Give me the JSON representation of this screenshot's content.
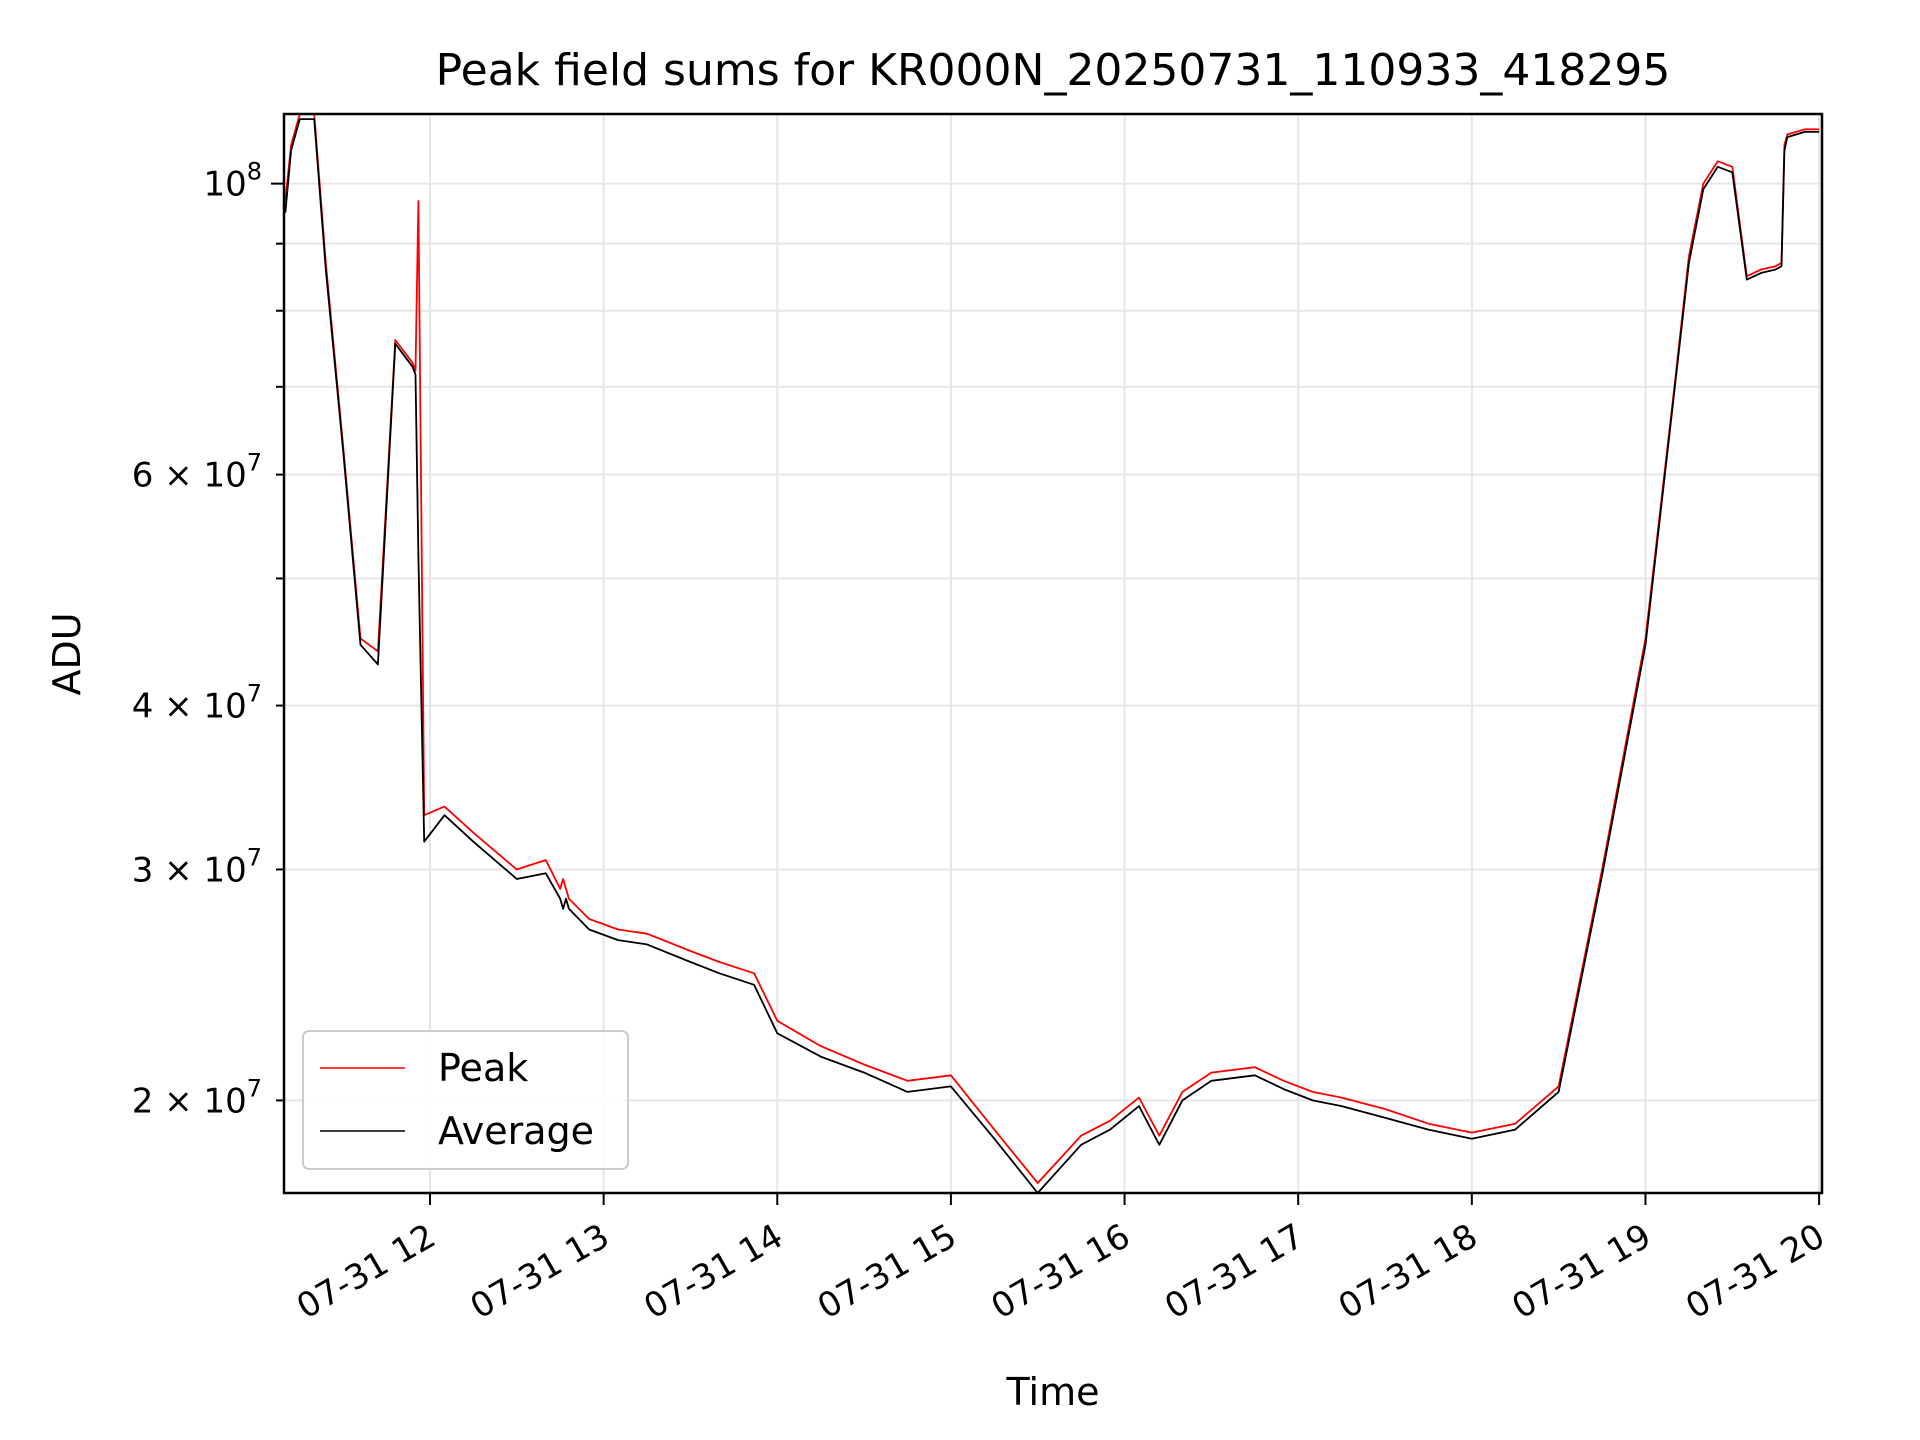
{
  "chart_data": {
    "type": "line",
    "title": "Peak field sums for KR000N_20250731_110933_418295",
    "xlabel": "Time",
    "ylabel": "ADU",
    "y_scale": "log",
    "ylim": [
      17000000,
      113000000
    ],
    "xlim": [
      "2025-07-31 11:09:33",
      "2025-07-31 20:01:00"
    ],
    "grid": true,
    "legend_position": "lower-left",
    "x_tick_labels": [
      "07-31 12",
      "07-31 13",
      "07-31 14",
      "07-31 15",
      "07-31 16",
      "07-31 17",
      "07-31 18",
      "07-31 19",
      "07-31 20"
    ],
    "x_ticks": [
      "2025-07-31 12:00",
      "2025-07-31 13:00",
      "2025-07-31 14:00",
      "2025-07-31 15:00",
      "2025-07-31 16:00",
      "2025-07-31 17:00",
      "2025-07-31 18:00",
      "2025-07-31 19:00",
      "2025-07-31 20:00"
    ],
    "y_major_ticks": [
      {
        "value": 100000000,
        "mantissa": "",
        "exponent": "8"
      }
    ],
    "y_minor_ticks": [
      {
        "value": 20000000,
        "mantissa": "2",
        "exponent": "7"
      },
      {
        "value": 30000000,
        "mantissa": "3",
        "exponent": "7"
      },
      {
        "value": 40000000,
        "mantissa": "4",
        "exponent": "7"
      },
      {
        "value": 60000000,
        "mantissa": "6",
        "exponent": "7"
      }
    ],
    "y_unlabeled_minor_ticks": [
      50000000,
      70000000,
      80000000,
      90000000
    ],
    "series": [
      {
        "name": "Peak",
        "color": "#ff0000",
        "x": [
          "2025-07-31 11:10:00",
          "2025-07-31 11:12:00",
          "2025-07-31 11:15:00",
          "2025-07-31 11:20:00",
          "2025-07-31 11:24:00",
          "2025-07-31 11:30:00",
          "2025-07-31 11:36:00",
          "2025-07-31 11:42:00",
          "2025-07-31 11:48:00",
          "2025-07-31 11:54:00",
          "2025-07-31 11:55:00",
          "2025-07-31 11:56:00",
          "2025-07-31 11:58:00",
          "2025-07-31 12:05:00",
          "2025-07-31 12:15:00",
          "2025-07-31 12:30:00",
          "2025-07-31 12:40:00",
          "2025-07-31 12:45:00",
          "2025-07-31 12:46:00",
          "2025-07-31 12:47:00",
          "2025-07-31 12:48:00",
          "2025-07-31 12:55:00",
          "2025-07-31 13:05:00",
          "2025-07-31 13:15:00",
          "2025-07-31 13:30:00",
          "2025-07-31 13:40:00",
          "2025-07-31 13:52:00",
          "2025-07-31 14:00:00",
          "2025-07-31 14:15:00",
          "2025-07-31 14:30:00",
          "2025-07-31 14:45:00",
          "2025-07-31 15:00:00",
          "2025-07-31 15:15:00",
          "2025-07-31 15:30:00",
          "2025-07-31 15:45:00",
          "2025-07-31 15:55:00",
          "2025-07-31 16:05:00",
          "2025-07-31 16:12:00",
          "2025-07-31 16:20:00",
          "2025-07-31 16:30:00",
          "2025-07-31 16:45:00",
          "2025-07-31 16:55:00",
          "2025-07-31 17:05:00",
          "2025-07-31 17:15:00",
          "2025-07-31 17:30:00",
          "2025-07-31 17:45:00",
          "2025-07-31 18:00:00",
          "2025-07-31 18:15:00",
          "2025-07-31 18:30:00",
          "2025-07-31 18:45:00",
          "2025-07-31 19:00:00",
          "2025-07-31 19:10:00",
          "2025-07-31 19:15:00",
          "2025-07-31 19:20:00",
          "2025-07-31 19:25:00",
          "2025-07-31 19:30:00",
          "2025-07-31 19:35:00",
          "2025-07-31 19:40:00",
          "2025-07-31 19:45:00",
          "2025-07-31 19:47:00",
          "2025-07-31 19:48:00",
          "2025-07-31 19:49:00",
          "2025-07-31 19:52:00",
          "2025-07-31 19:55:00",
          "2025-07-31 19:56:00",
          "2025-07-31 20:00:00"
        ],
        "values": [
          97000000,
          107000000,
          113000000,
          113000000,
          87000000,
          63000000,
          45000000,
          44000000,
          76000000,
          73000000,
          72000000,
          97000000,
          33000000,
          33500000,
          32000000,
          30000000,
          30500000,
          29000000,
          29500000,
          29000000,
          28500000,
          27500000,
          27000000,
          26800000,
          26000000,
          25500000,
          25000000,
          23000000,
          22000000,
          21300000,
          20700000,
          20900000,
          19000000,
          17300000,
          18800000,
          19300000,
          20100000,
          18800000,
          20300000,
          21000000,
          21200000,
          20700000,
          20300000,
          20100000,
          19700000,
          19200000,
          18900000,
          19200000,
          20500000,
          30000000,
          45000000,
          70000000,
          88000000,
          100000000,
          104000000,
          103000000,
          85000000,
          86000000,
          86500000,
          87000000,
          107000000,
          109000000,
          109500000,
          110000000,
          110000000,
          110000000
        ],
        "note": ""
      },
      {
        "name": "Average",
        "color": "#000000",
        "x": [
          "2025-07-31 11:10:00",
          "2025-07-31 11:12:00",
          "2025-07-31 11:15:00",
          "2025-07-31 11:20:00",
          "2025-07-31 11:24:00",
          "2025-07-31 11:30:00",
          "2025-07-31 11:36:00",
          "2025-07-31 11:42:00",
          "2025-07-31 11:48:00",
          "2025-07-31 11:54:00",
          "2025-07-31 11:55:00",
          "2025-07-31 11:56:00",
          "2025-07-31 11:58:00",
          "2025-07-31 12:05:00",
          "2025-07-31 12:15:00",
          "2025-07-31 12:30:00",
          "2025-07-31 12:40:00",
          "2025-07-31 12:45:00",
          "2025-07-31 12:46:00",
          "2025-07-31 12:47:00",
          "2025-07-31 12:48:00",
          "2025-07-31 12:55:00",
          "2025-07-31 13:05:00",
          "2025-07-31 13:15:00",
          "2025-07-31 13:30:00",
          "2025-07-31 13:40:00",
          "2025-07-31 13:52:00",
          "2025-07-31 14:00:00",
          "2025-07-31 14:15:00",
          "2025-07-31 14:30:00",
          "2025-07-31 14:45:00",
          "2025-07-31 15:00:00",
          "2025-07-31 15:15:00",
          "2025-07-31 15:30:00",
          "2025-07-31 15:45:00",
          "2025-07-31 15:55:00",
          "2025-07-31 16:05:00",
          "2025-07-31 16:12:00",
          "2025-07-31 16:20:00",
          "2025-07-31 16:30:00",
          "2025-07-31 16:45:00",
          "2025-07-31 16:55:00",
          "2025-07-31 17:05:00",
          "2025-07-31 17:15:00",
          "2025-07-31 17:30:00",
          "2025-07-31 17:45:00",
          "2025-07-31 18:00:00",
          "2025-07-31 18:15:00",
          "2025-07-31 18:30:00",
          "2025-07-31 18:45:00",
          "2025-07-31 19:00:00",
          "2025-07-31 19:10:00",
          "2025-07-31 19:15:00",
          "2025-07-31 19:20:00",
          "2025-07-31 19:25:00",
          "2025-07-31 19:30:00",
          "2025-07-31 19:35:00",
          "2025-07-31 19:40:00",
          "2025-07-31 19:45:00",
          "2025-07-31 19:47:00",
          "2025-07-31 19:48:00",
          "2025-07-31 19:49:00",
          "2025-07-31 19:52:00",
          "2025-07-31 19:55:00",
          "2025-07-31 19:56:00",
          "2025-07-31 20:00:00"
        ],
        "values": [
          95000000,
          106000000,
          112000000,
          112000000,
          86000000,
          62500000,
          44500000,
          43000000,
          75500000,
          72500000,
          71500000,
          52000000,
          31500000,
          33000000,
          31500000,
          29500000,
          29800000,
          28500000,
          28000000,
          28500000,
          28000000,
          27000000,
          26500000,
          26300000,
          25500000,
          25000000,
          24500000,
          22500000,
          21600000,
          21000000,
          20300000,
          20500000,
          18700000,
          17000000,
          18500000,
          19000000,
          19800000,
          18500000,
          20000000,
          20700000,
          20900000,
          20400000,
          20000000,
          19800000,
          19400000,
          19000000,
          18700000,
          19000000,
          20300000,
          29700000,
          44500000,
          69500000,
          87000000,
          99000000,
          103000000,
          102000000,
          84500000,
          85500000,
          86000000,
          86500000,
          106000000,
          108500000,
          109000000,
          109500000,
          109500000,
          109500000
        ],
        "note": ""
      }
    ]
  }
}
